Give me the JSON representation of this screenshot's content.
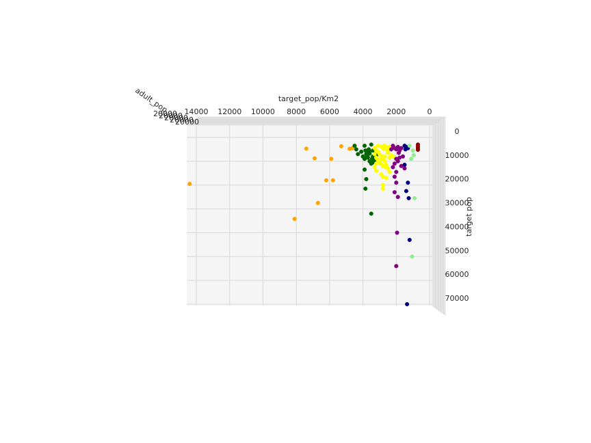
{
  "chart_data": {
    "type": "scatter",
    "projection": "3d",
    "xlabel": "target_pop/Km2",
    "ylabel": "target pop",
    "zlabel": "adult_pop",
    "x_ticks": [
      "14000",
      "12000",
      "10000",
      "8000",
      "6000",
      "4000",
      "2000",
      "0"
    ],
    "y_ticks": [
      "0",
      "10000",
      "20000",
      "30000",
      "40000",
      "50000",
      "60000",
      "70000"
    ],
    "z_ticks_text": "20000",
    "xlim": [
      14600,
      -400
    ],
    "ylim": [
      -3000,
      73000
    ],
    "grid": true,
    "colors": {
      "yellow": "#ffff00",
      "darkgreen": "#006400",
      "purple": "#800080",
      "navy": "#000080",
      "orange": "#ffa500",
      "lightgreen": "#90ee90",
      "darkred": "#8b0000",
      "pane": "#f5f5f5",
      "grid": "#d8d8d8"
    },
    "series": [
      {
        "color": "#ffa500",
        "points": [
          [
            14400,
            19500
          ],
          [
            8100,
            34200
          ],
          [
            6700,
            27500
          ],
          [
            6200,
            18000
          ],
          [
            5800,
            18000
          ],
          [
            5900,
            9000
          ],
          [
            6900,
            8800
          ],
          [
            7400,
            4700
          ],
          [
            5300,
            3700
          ],
          [
            4800,
            4800
          ],
          [
            4650,
            4600
          ]
        ]
      },
      {
        "color": "#006400",
        "points": [
          [
            4500,
            3500
          ],
          [
            4400,
            5000
          ],
          [
            4300,
            7000
          ],
          [
            4100,
            6000
          ],
          [
            3900,
            3500
          ],
          [
            3850,
            5500
          ],
          [
            3800,
            7000
          ],
          [
            3700,
            6500
          ],
          [
            3600,
            6000
          ],
          [
            3500,
            3000
          ],
          [
            3400,
            5500
          ],
          [
            3400,
            8000
          ],
          [
            3300,
            9500
          ],
          [
            3200,
            7500
          ],
          [
            3700,
            8500
          ],
          [
            3900,
            9000
          ],
          [
            4000,
            8000
          ],
          [
            3600,
            10000
          ],
          [
            3500,
            11000
          ],
          [
            3400,
            10500
          ],
          [
            3900,
            13500
          ],
          [
            3800,
            17500
          ],
          [
            3850,
            21500
          ],
          [
            3500,
            32000
          ],
          [
            3650,
            5000
          ],
          [
            3600,
            6800
          ],
          [
            3750,
            7800
          ],
          [
            3450,
            9000
          ]
        ]
      },
      {
        "color": "#ffff00",
        "points": [
          [
            3300,
            4500
          ],
          [
            3200,
            5500
          ],
          [
            3100,
            6000
          ],
          [
            3000,
            7000
          ],
          [
            2900,
            8000
          ],
          [
            2800,
            9000
          ],
          [
            2700,
            10000
          ],
          [
            2600,
            11500
          ],
          [
            2500,
            13000
          ],
          [
            2400,
            14500
          ],
          [
            2800,
            12000
          ],
          [
            3000,
            10500
          ],
          [
            3200,
            11000
          ],
          [
            3300,
            12500
          ],
          [
            3200,
            14000
          ],
          [
            2900,
            15500
          ],
          [
            2800,
            16500
          ],
          [
            2600,
            17000
          ],
          [
            2400,
            8500
          ],
          [
            2300,
            7500
          ],
          [
            2200,
            8000
          ],
          [
            2500,
            5500
          ],
          [
            2600,
            4500
          ],
          [
            2700,
            3500
          ],
          [
            2900,
            3800
          ],
          [
            3100,
            3500
          ],
          [
            3200,
            8500
          ],
          [
            3000,
            9500
          ],
          [
            2700,
            8000
          ],
          [
            2500,
            6500
          ],
          [
            2800,
            20000
          ],
          [
            2800,
            21500
          ],
          [
            3300,
            7000
          ],
          [
            3150,
            9000
          ],
          [
            2950,
            11000
          ],
          [
            2650,
            12500
          ],
          [
            2750,
            4800
          ],
          [
            2450,
            4000
          ],
          [
            2350,
            5200
          ]
        ]
      },
      {
        "color": "#800080",
        "points": [
          [
            2200,
            3500
          ],
          [
            2100,
            4500
          ],
          [
            2000,
            5000
          ],
          [
            1900,
            4000
          ],
          [
            1800,
            5500
          ],
          [
            1700,
            4500
          ],
          [
            1600,
            8000
          ],
          [
            1800,
            8500
          ],
          [
            2000,
            9000
          ],
          [
            2100,
            11000
          ],
          [
            2200,
            12500
          ],
          [
            1900,
            10000
          ],
          [
            1700,
            12000
          ],
          [
            1500,
            13000
          ],
          [
            2000,
            14500
          ],
          [
            2100,
            16500
          ],
          [
            2000,
            19000
          ],
          [
            2100,
            23000
          ],
          [
            1900,
            25000
          ],
          [
            1950,
            40000
          ],
          [
            2000,
            54000
          ],
          [
            2300,
            5000
          ],
          [
            1850,
            6500
          ]
        ]
      },
      {
        "color": "#000080",
        "points": [
          [
            1500,
            3500
          ],
          [
            1400,
            4000
          ],
          [
            1300,
            4500
          ],
          [
            1500,
            11500
          ],
          [
            1300,
            19000
          ],
          [
            1400,
            22500
          ],
          [
            1250,
            25500
          ],
          [
            1200,
            43000
          ],
          [
            1350,
            70000
          ],
          [
            1450,
            5000
          ]
        ]
      },
      {
        "color": "#90ee90",
        "points": [
          [
            1200,
            3500
          ],
          [
            1000,
            5500
          ],
          [
            1100,
            9000
          ],
          [
            950,
            7500
          ],
          [
            900,
            25500
          ],
          [
            1050,
            50000
          ]
        ]
      },
      {
        "color": "#8b0000",
        "points": [
          [
            700,
            3000
          ],
          [
            700,
            3800
          ],
          [
            700,
            4500
          ],
          [
            700,
            5200
          ]
        ]
      }
    ]
  }
}
